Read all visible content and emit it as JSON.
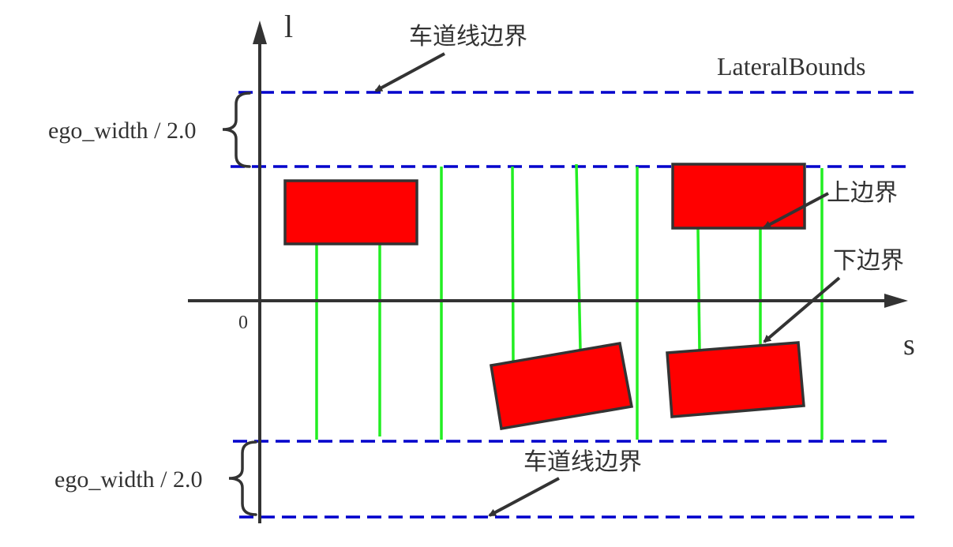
{
  "axes": {
    "l_label": "l",
    "s_label": "s",
    "origin_label": "0"
  },
  "labels": {
    "lane_boundary_top": "车道线边界",
    "lane_boundary_bottom": "车道线边界",
    "lateral_bounds": "LateralBounds",
    "ego_width_top": "ego_width / 2.0",
    "ego_width_bottom": "ego_width / 2.0",
    "upper_bound": "上边界",
    "lower_bound": "下边界"
  },
  "colors": {
    "axis": "#333333",
    "boundary_line": "#0000cc",
    "obstacle_fill": "#ff0000",
    "obstacle_stroke": "#333333",
    "bound_line": "#22ee22"
  }
}
